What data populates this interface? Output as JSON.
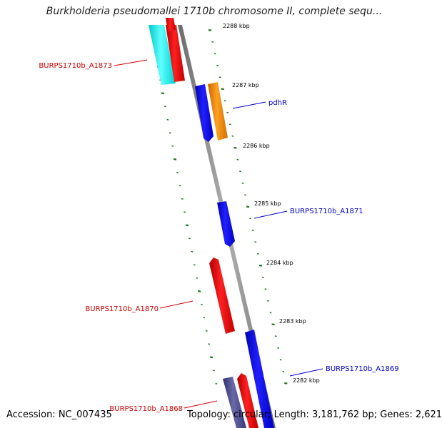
{
  "title": "Burkholderia pseudomallei 1710b chromosome II, complete sequ...",
  "footer": {
    "accession": "Accession: NC_007435",
    "summary": "Topology: circular; Length: 3,181,762 bp; Genes: 2,621"
  },
  "ruler_labels": [
    "2288 kbp",
    "2287 kbp",
    "2286 kbp",
    "2285 kbp",
    "2284 kbp",
    "2283 kbp",
    "2282 kbp"
  ],
  "genes": [
    {
      "name": "BURPS1710b_A1873",
      "color": "#cc0000"
    },
    {
      "name": "pdhR",
      "color": "#0000cc"
    },
    {
      "name": "BURPS1710b_A1871",
      "color": "#0000cc"
    },
    {
      "name": "BURPS1710b_A1870",
      "color": "#cc0000"
    },
    {
      "name": "BURPS1710b_A1869",
      "color": "#0000cc"
    },
    {
      "name": "BURPS1710b_A1868",
      "color": "#cc0000"
    }
  ],
  "colors": {
    "forward_strand": "#0000ff",
    "reverse_strand": "#ff0000",
    "orange_feature": "#ff8c00",
    "cyan_feature": "#00ffff",
    "dark_feature": "#4a4a8a",
    "backbone": "#888888",
    "ticks": "#1f7a1f"
  }
}
